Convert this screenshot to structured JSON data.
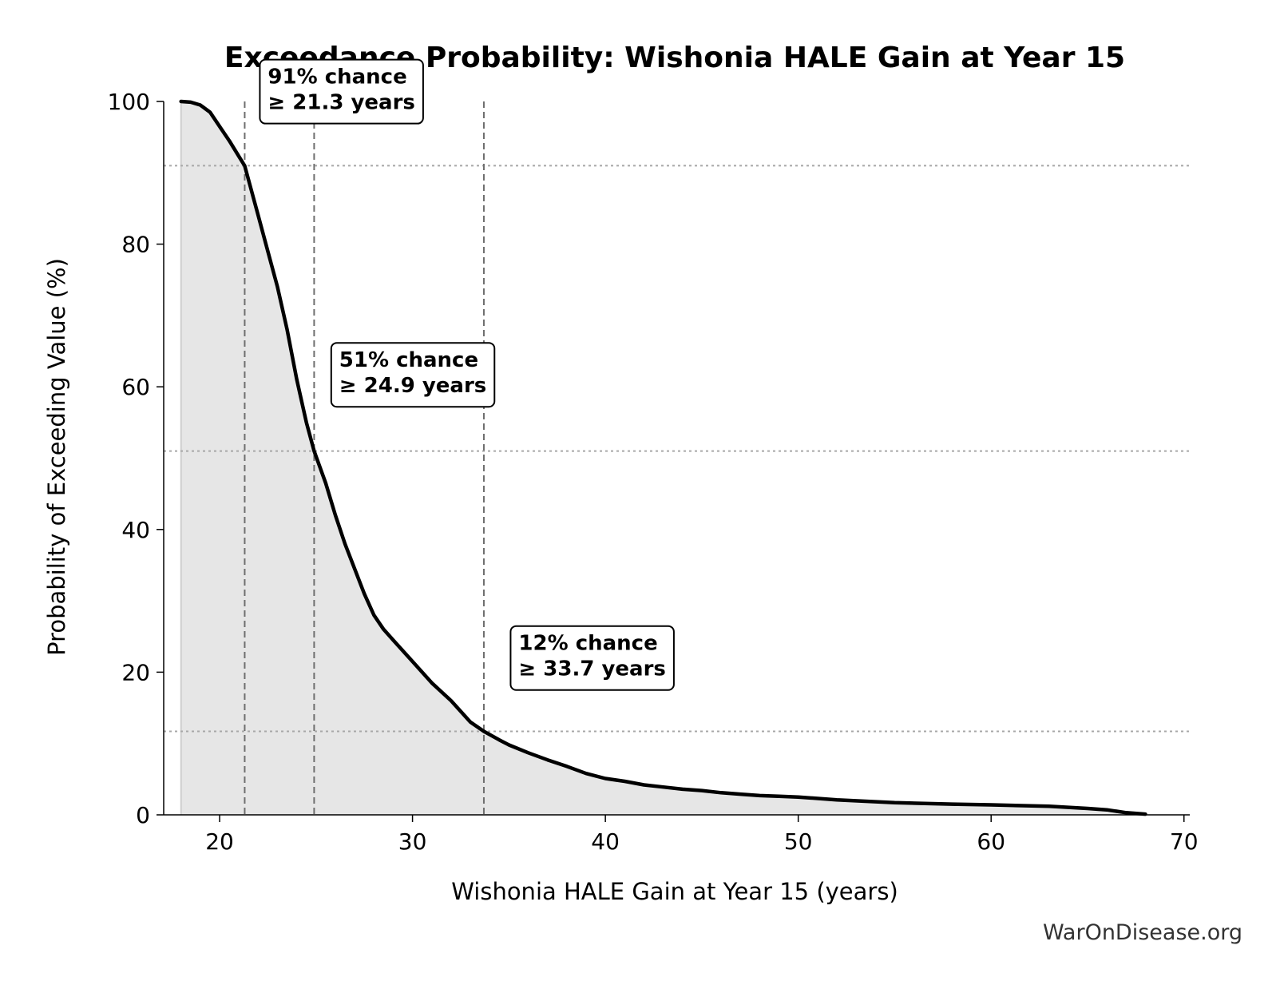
{
  "chart_data": {
    "type": "area",
    "title": "Exceedance Probability: Wishonia HALE Gain at Year 15",
    "xlabel": "Wishonia HALE Gain at Year 15 (years)",
    "ylabel": "Probability of Exceeding Value (%)",
    "xlim": [
      17.1,
      70.3
    ],
    "ylim": [
      0,
      100
    ],
    "xticks": [
      20,
      30,
      40,
      50,
      60,
      70
    ],
    "yticks": [
      0,
      20,
      40,
      60,
      80,
      100
    ],
    "grid": false,
    "series": [
      {
        "x": [
          18.0,
          18.5,
          19.0,
          19.5,
          20.0,
          20.5,
          21.0,
          21.3,
          21.6,
          22.0,
          22.5,
          23.0,
          23.5,
          24.0,
          24.5,
          24.9,
          25.5,
          26.0,
          26.5,
          27.0,
          27.5,
          28.0,
          28.5,
          29.0,
          29.5,
          30.0,
          31.0,
          32.0,
          33.0,
          33.7,
          34.5,
          35.0,
          36.0,
          37.0,
          38.0,
          39.0,
          40.0,
          41.0,
          42.0,
          43.0,
          44.0,
          45.0,
          46.0,
          47.0,
          48.0,
          49.0,
          50.0,
          52.0,
          55.0,
          58.0,
          60.0,
          63.0,
          65.0,
          66.0,
          67.0,
          68.0
        ],
        "y": [
          100,
          99.9,
          99.5,
          98.5,
          96.5,
          94.5,
          92.3,
          91,
          88,
          84,
          79,
          74,
          68,
          61,
          55,
          51,
          46.5,
          42,
          38,
          34.5,
          31,
          28,
          26,
          24.5,
          23,
          21.5,
          18.5,
          16,
          13,
          11.7,
          10.5,
          9.8,
          8.7,
          7.7,
          6.8,
          5.8,
          5.1,
          4.7,
          4.2,
          3.9,
          3.6,
          3.4,
          3.1,
          2.9,
          2.7,
          2.6,
          2.5,
          2.1,
          1.7,
          1.5,
          1.4,
          1.2,
          0.9,
          0.7,
          0.3,
          0.1
        ]
      }
    ],
    "markers": [
      {
        "x": 21.3,
        "y": 91,
        "text": [
          "91% chance",
          "≥ 21.3 years"
        ],
        "label_at": [
          22.5,
          102.5
        ]
      },
      {
        "x": 24.9,
        "y": 51,
        "text": [
          "51% chance",
          "≥ 24.9 years"
        ],
        "label_at": [
          26.2,
          62.8
        ]
      },
      {
        "x": 33.7,
        "y": 11.7,
        "text": [
          "12% chance",
          "≥ 33.7 years"
        ],
        "label_at": [
          35.5,
          23.1
        ]
      }
    ],
    "footer": "WarOnDisease.org"
  }
}
